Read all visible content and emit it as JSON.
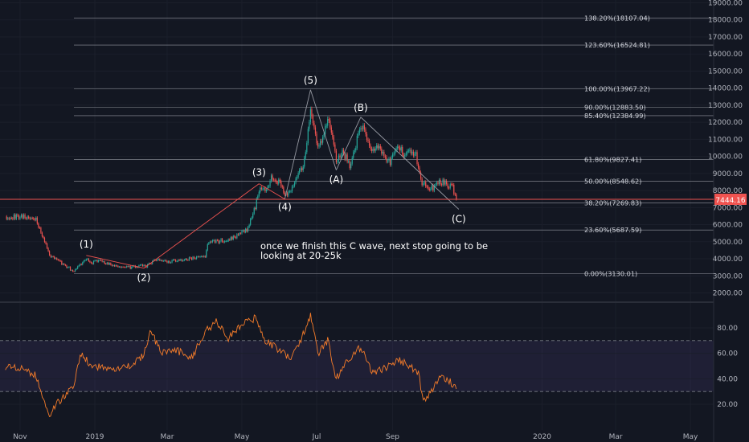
{
  "price_panel": {
    "ticker_price_label": "7444.16",
    "annotation": [
      "once we finish this C wave, next stop going to be",
      "looking at 20-25k"
    ]
  },
  "chart_data": [
    {
      "type": "candlestick",
      "panel": "price",
      "y_scale": "linear",
      "y_ticks": [
        "2000.00",
        "3000.00",
        "4000.00",
        "5000.00",
        "6000.00",
        "7000.00",
        "8000.00",
        "9000.00",
        "10000.00",
        "11000.00",
        "12000.00",
        "13000.00",
        "14000.00",
        "15000.00",
        "16000.00",
        "17000.00",
        "18000.00",
        "19000.00"
      ],
      "x_ticks": [
        "Nov",
        "2019",
        "Mar",
        "May",
        "Jul",
        "Sep",
        "2020",
        "Mar",
        "May"
      ],
      "close_series": [
        [
          "2018-10-20",
          6480
        ],
        [
          "2018-10-28",
          6450
        ],
        [
          "2018-11-05",
          6500
        ],
        [
          "2018-11-10",
          6380
        ],
        [
          "2018-11-14",
          6300
        ],
        [
          "2018-11-18",
          5500
        ],
        [
          "2018-11-22",
          4800
        ],
        [
          "2018-11-25",
          4200
        ],
        [
          "2018-11-30",
          4050
        ],
        [
          "2018-12-05",
          3750
        ],
        [
          "2018-12-10",
          3500
        ],
        [
          "2018-12-15",
          3250
        ],
        [
          "2018-12-20",
          3650
        ],
        [
          "2018-12-25",
          3950
        ],
        [
          "2018-12-30",
          3780
        ],
        [
          "2019-01-05",
          3960
        ],
        [
          "2019-01-10",
          3720
        ],
        [
          "2019-01-20",
          3550
        ],
        [
          "2019-01-30",
          3480
        ],
        [
          "2019-02-08",
          3620
        ],
        [
          "2019-02-12",
          3580
        ],
        [
          "2019-02-20",
          3950
        ],
        [
          "2019-03-01",
          3820
        ],
        [
          "2019-03-10",
          3920
        ],
        [
          "2019-03-20",
          4010
        ],
        [
          "2019-04-01",
          4150
        ],
        [
          "2019-04-03",
          4920
        ],
        [
          "2019-04-15",
          5070
        ],
        [
          "2019-04-25",
          5250
        ],
        [
          "2019-05-05",
          5700
        ],
        [
          "2019-05-12",
          7000
        ],
        [
          "2019-05-15",
          8100
        ],
        [
          "2019-05-20",
          8000
        ],
        [
          "2019-05-25",
          8700
        ],
        [
          "2019-06-01",
          8550
        ],
        [
          "2019-06-05",
          7800
        ],
        [
          "2019-06-10",
          7900
        ],
        [
          "2019-06-15",
          8700
        ],
        [
          "2019-06-20",
          9500
        ],
        [
          "2019-06-23",
          10800
        ],
        [
          "2019-06-26",
          12800
        ],
        [
          "2019-06-28",
          11800
        ],
        [
          "2019-07-02",
          10500
        ],
        [
          "2019-07-05",
          11000
        ],
        [
          "2019-07-10",
          12300
        ],
        [
          "2019-07-13",
          11400
        ],
        [
          "2019-07-17",
          9700
        ],
        [
          "2019-07-22",
          10300
        ],
        [
          "2019-07-28",
          9500
        ],
        [
          "2019-08-01",
          10400
        ],
        [
          "2019-08-06",
          11800
        ],
        [
          "2019-08-10",
          11400
        ],
        [
          "2019-08-15",
          10200
        ],
        [
          "2019-08-20",
          10700
        ],
        [
          "2019-08-25",
          10100
        ],
        [
          "2019-08-30",
          9600
        ],
        [
          "2019-09-05",
          10600
        ],
        [
          "2019-09-10",
          10200
        ],
        [
          "2019-09-15",
          10300
        ],
        [
          "2019-09-20",
          10100
        ],
        [
          "2019-09-24",
          8500
        ],
        [
          "2019-09-30",
          8200
        ],
        [
          "2019-10-05",
          8150
        ],
        [
          "2019-10-10",
          8550
        ],
        [
          "2019-10-15",
          8350
        ],
        [
          "2019-10-20",
          8200
        ],
        [
          "2019-10-23",
          7444
        ]
      ]
    },
    {
      "type": "line",
      "panel": "indicator",
      "y_ticks": [
        "20.00",
        "40.00",
        "60.00",
        "80.00"
      ],
      "y_ticks_values": [
        20,
        40,
        60,
        80
      ],
      "band": [
        30,
        70
      ],
      "series": [
        {
          "values": [
            [
              "2018-10-20",
              50
            ],
            [
              "2018-11-05",
              48
            ],
            [
              "2018-11-14",
              42
            ],
            [
              "2018-11-20",
              22
            ],
            [
              "2018-11-25",
              12
            ],
            [
              "2018-12-01",
              20
            ],
            [
              "2018-12-08",
              28
            ],
            [
              "2018-12-15",
              32
            ],
            [
              "2018-12-20",
              60
            ],
            [
              "2018-12-28",
              52
            ],
            [
              "2019-01-08",
              48
            ],
            [
              "2019-01-20",
              47
            ],
            [
              "2019-02-01",
              52
            ],
            [
              "2019-02-10",
              58
            ],
            [
              "2019-02-15",
              78
            ],
            [
              "2019-02-25",
              60
            ],
            [
              "2019-03-10",
              62
            ],
            [
              "2019-03-20",
              55
            ],
            [
              "2019-04-02",
              78
            ],
            [
              "2019-04-10",
              85
            ],
            [
              "2019-04-20",
              72
            ],
            [
              "2019-05-01",
              82
            ],
            [
              "2019-05-12",
              88
            ],
            [
              "2019-05-20",
              70
            ],
            [
              "2019-06-01",
              62
            ],
            [
              "2019-06-10",
              55
            ],
            [
              "2019-06-20",
              75
            ],
            [
              "2019-06-26",
              90
            ],
            [
              "2019-07-02",
              60
            ],
            [
              "2019-07-10",
              70
            ],
            [
              "2019-07-17",
              40
            ],
            [
              "2019-07-25",
              52
            ],
            [
              "2019-08-06",
              65
            ],
            [
              "2019-08-15",
              45
            ],
            [
              "2019-08-25",
              48
            ],
            [
              "2019-09-05",
              55
            ],
            [
              "2019-09-15",
              50
            ],
            [
              "2019-09-22",
              45
            ],
            [
              "2019-09-26",
              22
            ],
            [
              "2019-10-01",
              28
            ],
            [
              "2019-10-10",
              42
            ],
            [
              "2019-10-18",
              38
            ],
            [
              "2019-10-23",
              32
            ]
          ]
        }
      ]
    },
    {
      "type": "fibonacci_levels",
      "levels": [
        {
          "label": "138.20%(18107.04)",
          "value": 18107.04
        },
        {
          "label": "123.60%(16524.81)",
          "value": 16524.81
        },
        {
          "label": "100.00%(13967.22)",
          "value": 13967.22
        },
        {
          "label": "90.00%(12883.50)",
          "value": 12883.5
        },
        {
          "label": "85.40%(12384.99)",
          "value": 12384.99
        },
        {
          "label": "61.80%(9827.41)",
          "value": 9827.41
        },
        {
          "label": "50.00%(8548.62)",
          "value": 8548.62
        },
        {
          "label": "38.20%(7269.83)",
          "value": 7269.83
        },
        {
          "label": "23.60%(5687.59)",
          "value": 5687.59
        },
        {
          "label": "0.00%(3130.01)",
          "value": 3130.01
        }
      ]
    },
    {
      "type": "wave_labels",
      "points": [
        {
          "label": "(1)",
          "date": "2018-12-25",
          "value": 4200
        },
        {
          "label": "(2)",
          "date": "2019-02-10",
          "value": 3450
        },
        {
          "label": "(3)",
          "date": "2019-05-15",
          "value": 8400
        },
        {
          "label": "(4)",
          "date": "2019-06-05",
          "value": 7500
        },
        {
          "label": "(5)",
          "date": "2019-06-26",
          "value": 13900
        },
        {
          "label": "(A)",
          "date": "2019-07-17",
          "value": 9200
        },
        {
          "label": "(B)",
          "date": "2019-08-06",
          "value": 12300
        },
        {
          "label": "(C)",
          "date": "2019-10-25",
          "value": 6900
        }
      ]
    }
  ]
}
